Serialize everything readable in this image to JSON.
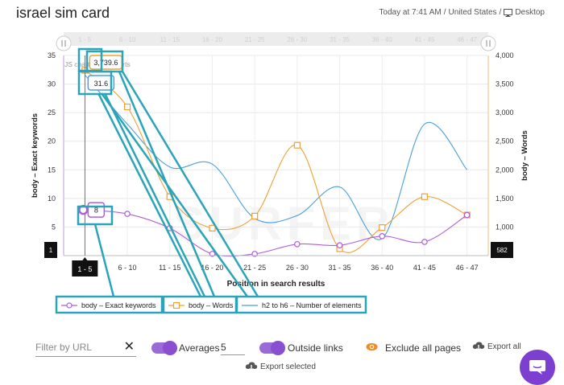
{
  "header": {
    "title": "israel sim card",
    "meta_time": "Today at 7:41 AM",
    "meta_location": "United States",
    "meta_device": "Desktop"
  },
  "chart_data": {
    "type": "line",
    "xlabel": "Position in search results",
    "ylabel_left": "body – Exact keywords",
    "ylabel_right": "body – Words",
    "categories": [
      "1 - 5",
      "6 - 10",
      "11 - 15",
      "16 - 20",
      "21 - 25",
      "26 - 30",
      "31 - 35",
      "36 - 40",
      "41 - 45",
      "46 - 47"
    ],
    "ylim_left": [
      0,
      35
    ],
    "yticks_left": [
      "0",
      "5",
      "10",
      "15",
      "20",
      "25",
      "30",
      "35"
    ],
    "ylim_right": [
      500,
      4000
    ],
    "yticks_right": [
      "500",
      "1,000",
      "1,500",
      "2,000",
      "2,500",
      "3,000",
      "3,500",
      "4,000"
    ],
    "series": [
      {
        "name": "body – Exact keywords",
        "axis": "left",
        "color": "#b05ed8",
        "marker": "circle",
        "values": [
          8,
          7.3,
          4.8,
          0.3,
          0.3,
          2,
          1.8,
          3.4,
          2.4,
          7.1
        ]
      },
      {
        "name": "body – Words",
        "axis": "right",
        "color": "#f0a035",
        "marker": "square",
        "values": [
          3739.6,
          3100,
          1530,
          980,
          1190,
          2430,
          620,
          990,
          1530,
          1210
        ]
      },
      {
        "name": "h2 to h6 – Number of elements",
        "axis": "left",
        "color": "#4a9fd8",
        "marker": "none",
        "values": [
          31.6,
          23,
          15.5,
          16,
          6.5,
          7,
          12,
          3,
          23,
          15
        ]
      }
    ],
    "tooltips": {
      "exact": "8",
      "h2": "31.6",
      "words": "3,739.6"
    },
    "crosshair_label": "1 - 5",
    "cursor_left_value": "1",
    "cursor_right_value": "582",
    "watermark": "JS chart by amCharts",
    "background_text": "SURFER",
    "grid": true,
    "legend_position": "bottom"
  },
  "controls": {
    "filter_placeholder": "Filter by URL",
    "averages_label": "Averages",
    "averages_value": "5",
    "outside_links_label": "Outside links",
    "exclude_label": "Exclude all pages",
    "export_all_label": "Export all",
    "export_selected_label": "Export selected"
  },
  "colors": {
    "accent": "#7c3fcf",
    "highlight": "#2aa4b8",
    "exclude_eye": "#f08a24"
  }
}
